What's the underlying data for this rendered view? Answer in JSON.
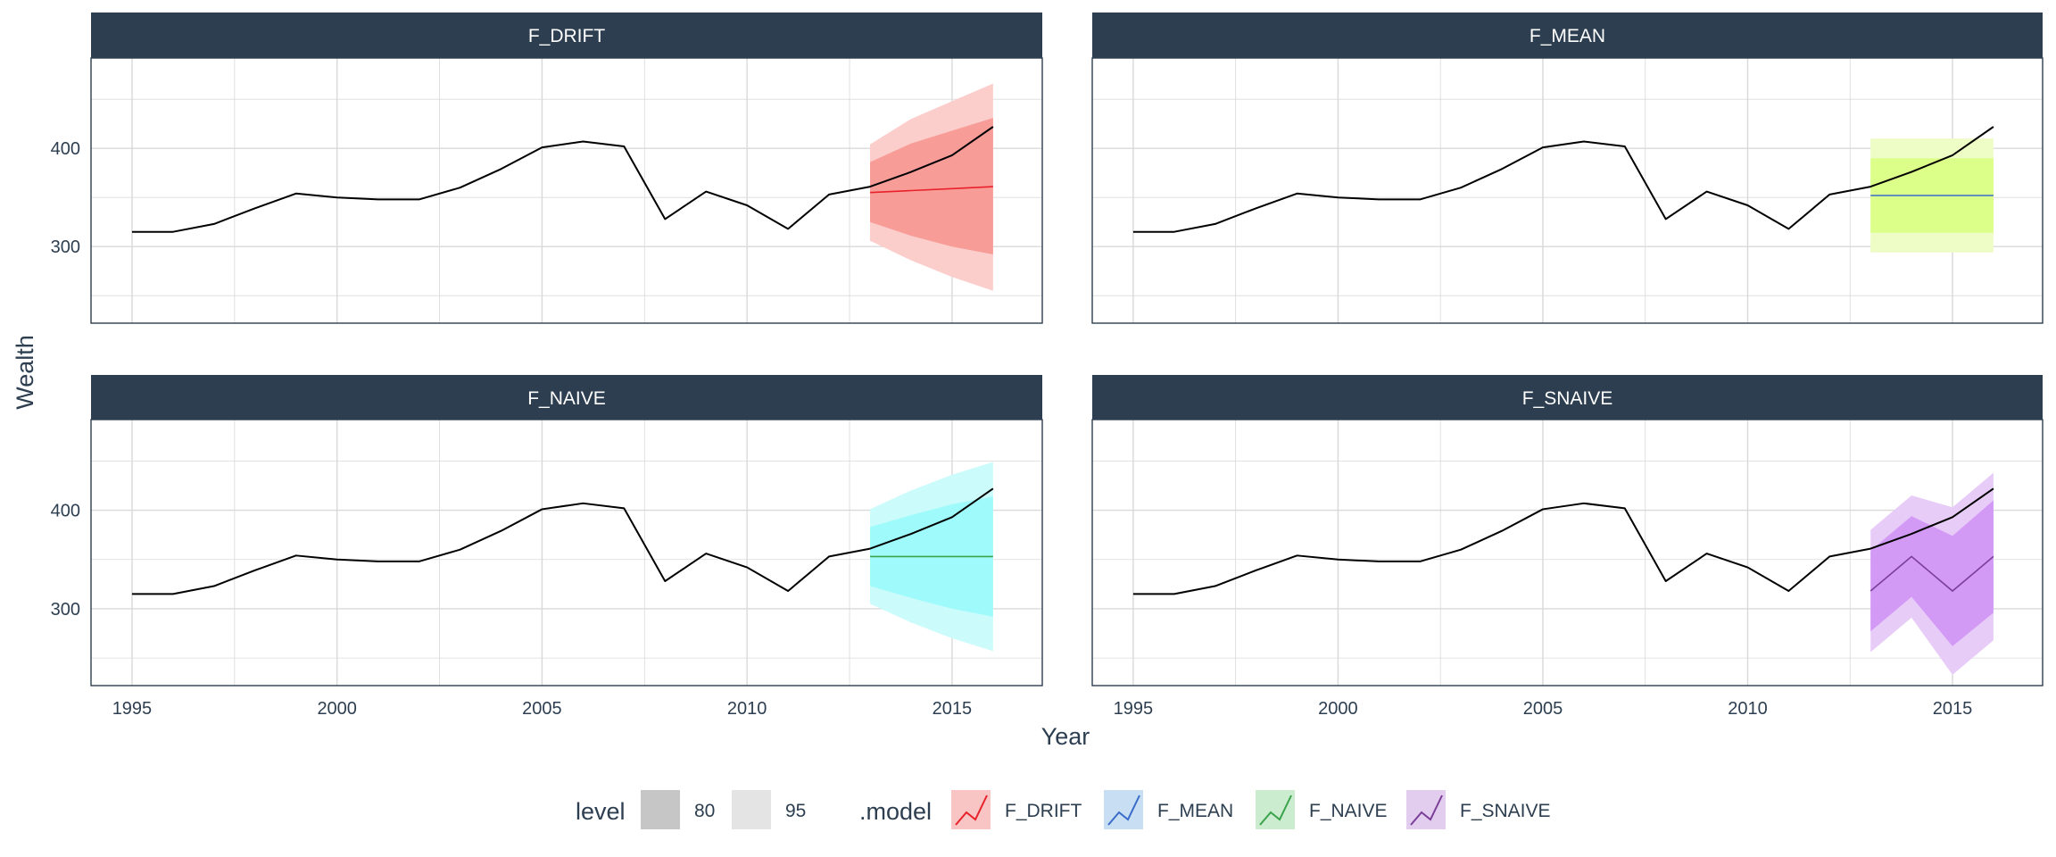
{
  "chart_data": {
    "type": "line",
    "xlabel": "Year",
    "ylabel": "Wealth",
    "x_ticks": [
      1995,
      2000,
      2005,
      2010,
      2015
    ],
    "y_ticks": [
      300,
      400
    ],
    "xlim": [
      1994.0,
      2017.2
    ],
    "ylim": [
      222,
      492
    ],
    "grid": true,
    "history": {
      "x": [
        1995,
        1996,
        1997,
        1998,
        1999,
        2000,
        2001,
        2002,
        2003,
        2004,
        2005,
        2006,
        2007,
        2008,
        2009,
        2010,
        2011,
        2012,
        2013,
        2014,
        2015,
        2016
      ],
      "y": [
        315,
        315,
        323,
        339,
        354,
        350,
        348,
        348,
        360,
        379,
        401,
        407,
        402,
        328,
        356,
        342,
        318,
        353,
        361,
        376,
        393,
        422
      ]
    },
    "panels": [
      {
        "name": "F_DRIFT",
        "x": [
          2013,
          2014,
          2015,
          2016
        ],
        "mean": [
          355,
          357,
          359,
          361
        ],
        "lo80": [
          325,
          311,
          300,
          292
        ],
        "hi80": [
          386,
          405,
          418,
          431
        ],
        "lo95": [
          306,
          286,
          269,
          255
        ],
        "hi95": [
          404,
          430,
          448,
          466
        ]
      },
      {
        "name": "F_MEAN",
        "x": [
          2013,
          2014,
          2015,
          2016
        ],
        "mean": [
          352,
          352,
          352,
          352
        ],
        "lo80": [
          314,
          314,
          314,
          314
        ],
        "hi80": [
          390,
          390,
          390,
          390
        ],
        "lo95": [
          294,
          294,
          294,
          294
        ],
        "hi95": [
          410,
          410,
          410,
          410
        ]
      },
      {
        "name": "F_NAIVE",
        "x": [
          2013,
          2014,
          2015,
          2016
        ],
        "mean": [
          353,
          353,
          353,
          353
        ],
        "lo80": [
          323,
          311,
          300,
          292
        ],
        "hi80": [
          383,
          395,
          406,
          414
        ],
        "lo95": [
          305,
          286,
          270,
          257
        ],
        "hi95": [
          401,
          420,
          436,
          449
        ]
      },
      {
        "name": "F_SNAIVE",
        "x": [
          2013,
          2014,
          2015,
          2016
        ],
        "mean": [
          318,
          353,
          318,
          353
        ],
        "lo80": [
          277,
          312,
          262,
          296
        ],
        "hi80": [
          359,
          394,
          374,
          410
        ],
        "lo95": [
          256,
          291,
          233,
          268
        ],
        "hi95": [
          380,
          415,
          403,
          438
        ]
      }
    ],
    "legend": {
      "placement": "bottom",
      "level_title": "level",
      "levels": [
        "80",
        "95"
      ],
      "model_title": ".model",
      "models": [
        "F_DRIFT",
        "F_MEAN",
        "F_NAIVE",
        "F_SNAIVE"
      ]
    }
  },
  "colors": {
    "strip_bg": "#2c3e50",
    "grid": "#d9d9d9",
    "panel_border": "#2c3e50",
    "history_line": "#000000",
    "F_DRIFT": {
      "line": "#e8212a",
      "band80": "#f89c98",
      "band95": "#fbcdcb"
    },
    "F_MEAN": {
      "line": "#3b6cc9",
      "band80": "#dcff8a",
      "band95": "#eefcc6"
    },
    "F_NAIVE": {
      "line": "#3aa34b",
      "band80": "#9ffbfb",
      "band95": "#cbfbfb"
    },
    "F_SNAIVE": {
      "line": "#7b3e98",
      "band80": "#d39af5",
      "band95": "#e8ccf8"
    },
    "legend_key_bg": {
      "F_DRIFT": "#f9c5c4",
      "F_MEAN": "#c8dff3",
      "F_NAIVE": "#cbeccf",
      "F_SNAIVE": "#e3cdef"
    },
    "level_80": "#c6c6c6",
    "level_95": "#e4e4e4"
  }
}
